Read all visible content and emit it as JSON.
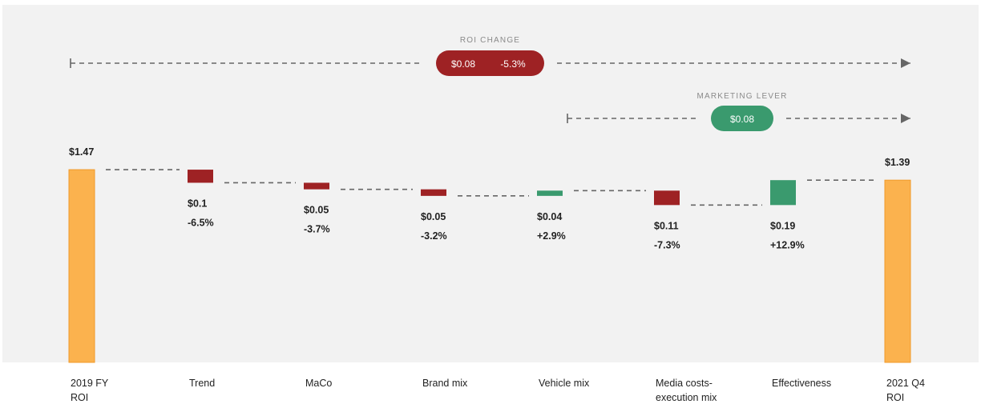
{
  "chart_data": {
    "type": "waterfall",
    "categories": [
      [
        "2019 FY",
        "ROI"
      ],
      [
        "Trend"
      ],
      [
        "MaCo"
      ],
      [
        "Brand mix"
      ],
      [
        "Vehicle mix"
      ],
      [
        "Media costs-",
        "execution mix"
      ],
      [
        "Effectiveness"
      ],
      [
        "2021 Q4",
        "ROI"
      ]
    ],
    "bars": [
      {
        "kind": "total",
        "start": 0,
        "end": 1.47,
        "value_label": "$1.47",
        "pct_label": ""
      },
      {
        "kind": "decrease",
        "start": 1.47,
        "end": 1.37,
        "value_label": "$0.1",
        "pct_label": "-6.5%"
      },
      {
        "kind": "decrease",
        "start": 1.37,
        "end": 1.32,
        "value_label": "$0.05",
        "pct_label": "-3.7%"
      },
      {
        "kind": "decrease",
        "start": 1.32,
        "end": 1.27,
        "value_label": "$0.05",
        "pct_label": "-3.2%"
      },
      {
        "kind": "increase",
        "start": 1.27,
        "end": 1.31,
        "value_label": "$0.04",
        "pct_label": "+2.9%"
      },
      {
        "kind": "decrease",
        "start": 1.31,
        "end": 1.2,
        "value_label": "$0.11",
        "pct_label": "-7.3%"
      },
      {
        "kind": "increase",
        "start": 1.2,
        "end": 1.39,
        "value_label": "$0.19",
        "pct_label": "+12.9%"
      },
      {
        "kind": "total",
        "start": 0,
        "end": 1.39,
        "value_label": "$1.39",
        "pct_label": ""
      }
    ],
    "annotations": [
      {
        "title": "ROI CHANGE",
        "values": [
          "$0.08",
          "-5.3%"
        ],
        "from_index": 0,
        "to_index": 7,
        "color": "#9e2224"
      },
      {
        "title": "MARKETING LEVER",
        "values": [
          "$0.08"
        ],
        "from_index": 4,
        "to_index": 7,
        "color": "#3a9a6e"
      }
    ],
    "colors": {
      "total": "#fbb24e",
      "total_stroke": "#f09a2a",
      "decrease": "#9e2224",
      "increase": "#3a9a6e",
      "background": "#f2f2f2",
      "connector": "#666666"
    }
  }
}
